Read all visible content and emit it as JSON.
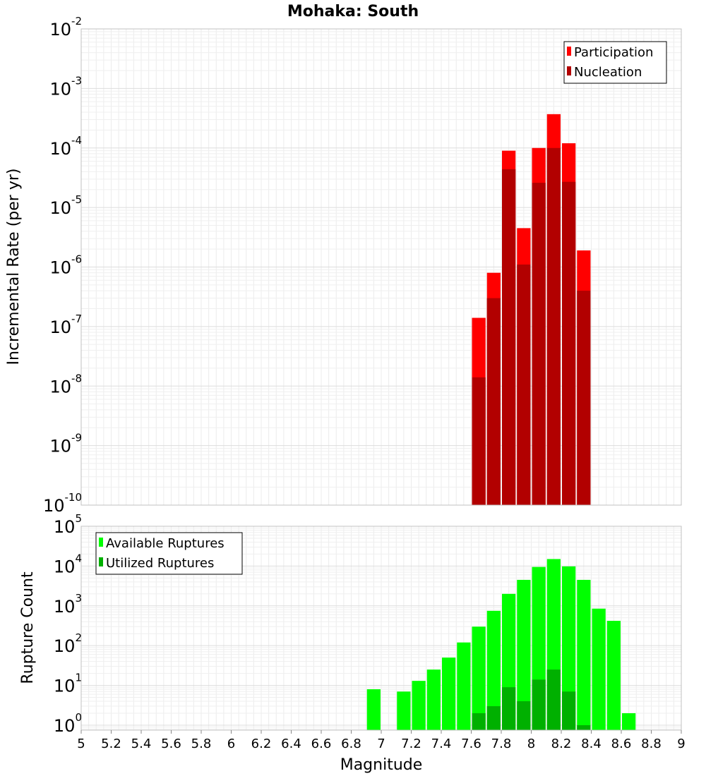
{
  "chart_data": [
    {
      "type": "bar",
      "title": "Mohaka: South",
      "xlabel": "Magnitude",
      "ylabel": "Incremental Rate (per yr)",
      "yscale": "log",
      "ylim": [
        1e-10,
        0.01
      ],
      "xlim": [
        5,
        9
      ],
      "x_ticks": [
        "5",
        "5.2",
        "5.4",
        "5.6",
        "5.8",
        "6",
        "6.2",
        "6.4",
        "6.6",
        "6.8",
        "7",
        "7.2",
        "7.4",
        "7.6",
        "7.8",
        "8",
        "8.2",
        "8.4",
        "8.6",
        "8.8",
        "9"
      ],
      "y_ticks": [
        {
          "base": "10",
          "exp": "-10"
        },
        {
          "base": "10",
          "exp": "-9"
        },
        {
          "base": "10",
          "exp": "-8"
        },
        {
          "base": "10",
          "exp": "-7"
        },
        {
          "base": "10",
          "exp": "-6"
        },
        {
          "base": "10",
          "exp": "-5"
        },
        {
          "base": "10",
          "exp": "-4"
        },
        {
          "base": "10",
          "exp": "-3"
        },
        {
          "base": "10",
          "exp": "-2"
        }
      ],
      "legend_position": "top-right",
      "bar_width": 0.1,
      "x": [
        7.65,
        7.75,
        7.85,
        7.95,
        8.05,
        8.15,
        8.25,
        8.35
      ],
      "series": [
        {
          "name": "Participation",
          "color": "#ff0000",
          "values": [
            1.4e-07,
            8e-07,
            9e-05,
            4.5e-06,
            0.0001,
            0.00037,
            0.00012,
            1.9e-06
          ]
        },
        {
          "name": "Nucleation",
          "color": "#b20000",
          "values": [
            1.4e-08,
            3e-07,
            4.4e-05,
            1.1e-06,
            2.6e-05,
            0.0001,
            2.7e-05,
            4e-07
          ]
        }
      ]
    },
    {
      "type": "bar",
      "title": "",
      "xlabel": "Magnitude",
      "ylabel": "Rupture Count",
      "yscale": "log",
      "ylim": [
        0.75,
        100000.0
      ],
      "xlim": [
        5,
        9
      ],
      "y_ticks": [
        {
          "base": "10",
          "exp": "0",
          "value": 1
        },
        {
          "base": "10",
          "exp": "1",
          "value": 10
        },
        {
          "base": "10",
          "exp": "2",
          "value": 100
        },
        {
          "base": "10",
          "exp": "3",
          "value": 1000
        },
        {
          "base": "10",
          "exp": "4",
          "value": 10000
        },
        {
          "base": "10",
          "exp": "5",
          "value": 100000
        }
      ],
      "legend_position": "top-left",
      "bar_width": 0.1,
      "series": [
        {
          "name": "Available Ruptures",
          "color": "#00ff00",
          "x": [
            6.95,
            7.15,
            7.25,
            7.35,
            7.45,
            7.55,
            7.65,
            7.75,
            7.85,
            7.95,
            8.05,
            8.15,
            8.25,
            8.35,
            8.45,
            8.55,
            8.65
          ],
          "values": [
            8,
            7,
            13,
            25,
            50,
            120,
            300,
            750,
            2000,
            4500,
            9500,
            15000,
            9800,
            4500,
            850,
            420,
            2
          ]
        },
        {
          "name": "Utilized Ruptures",
          "color": "#00b000",
          "x": [
            7.65,
            7.75,
            7.85,
            7.95,
            8.05,
            8.15,
            8.25,
            8.35
          ],
          "values": [
            2,
            3,
            9,
            4,
            14,
            25,
            7,
            1
          ]
        }
      ]
    }
  ]
}
